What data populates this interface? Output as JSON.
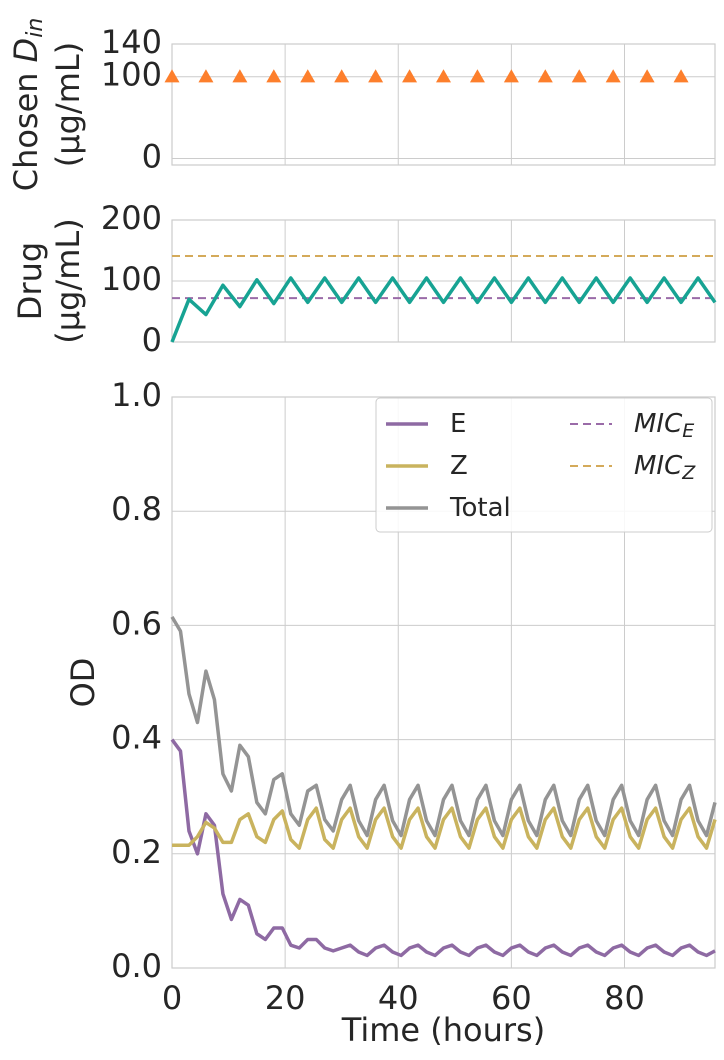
{
  "chart_data": [
    {
      "type": "scatter",
      "ylabel": {
        "line1": "Chosen",
        "symbol": "D",
        "sub": "in",
        "line2": "(μg/mL)"
      },
      "x": [
        0,
        6,
        12,
        18,
        24,
        30,
        36,
        42,
        48,
        54,
        60,
        66,
        72,
        78,
        84,
        90
      ],
      "values": [
        100,
        100,
        100,
        100,
        100,
        100,
        100,
        100,
        100,
        100,
        100,
        100,
        100,
        100,
        100,
        100
      ],
      "color": "#fd7f2c",
      "marker": "triangle",
      "xlim": [
        0,
        96
      ],
      "xticks": [
        0,
        20,
        40,
        60,
        80
      ],
      "show_xtick_labels": false,
      "ylim": [
        -8,
        140
      ],
      "yticks": [
        0,
        100,
        140
      ],
      "grid": true
    },
    {
      "type": "line",
      "ylabel": {
        "line1": "Drug",
        "line2": "(μg/mL)"
      },
      "x": [
        0,
        3,
        6,
        9,
        12,
        15,
        18,
        21,
        24,
        27,
        30,
        33,
        36,
        39,
        42,
        45,
        48,
        51,
        54,
        57,
        60,
        63,
        66,
        69,
        72,
        75,
        78,
        81,
        84,
        87,
        90,
        93,
        96
      ],
      "series": [
        {
          "color": "#17a393",
          "values": [
            0,
            70,
            45,
            93,
            58,
            102,
            63,
            105,
            65,
            105,
            65,
            105,
            65,
            105,
            65,
            105,
            65,
            105,
            65,
            105,
            65,
            105,
            65,
            105,
            65,
            105,
            65,
            105,
            65,
            105,
            65,
            105,
            65
          ]
        }
      ],
      "hlines": [
        {
          "name": "MIC",
          "sub": "E",
          "value": 72,
          "color": "#9a6ba8"
        },
        {
          "name": "MIC",
          "sub": "Z",
          "value": 141,
          "color": "#d4aa5a"
        }
      ],
      "xlim": [
        0,
        96
      ],
      "xticks": [
        0,
        20,
        40,
        60,
        80
      ],
      "show_xtick_labels": false,
      "ylim": [
        0,
        200
      ],
      "yticks": [
        0,
        100,
        200
      ],
      "grid": true
    },
    {
      "type": "line",
      "xlabel": "Time (hours)",
      "ylabel": "OD",
      "x": [
        0,
        1.5,
        3,
        4.5,
        6,
        7.5,
        9,
        10.5,
        12,
        13.5,
        15,
        16.5,
        18,
        19.5,
        21,
        22.5,
        24,
        25.5,
        27,
        28.5,
        30,
        31.5,
        33,
        34.5,
        36,
        37.5,
        39,
        40.5,
        42,
        43.5,
        45,
        46.5,
        48,
        49.5,
        51,
        52.5,
        54,
        55.5,
        57,
        58.5,
        60,
        61.5,
        63,
        64.5,
        66,
        67.5,
        69,
        70.5,
        72,
        73.5,
        75,
        76.5,
        78,
        79.5,
        81,
        82.5,
        84,
        85.5,
        87,
        88.5,
        90,
        91.5,
        93,
        94.5,
        96
      ],
      "series": [
        {
          "name": "E",
          "color": "#8e6aa3",
          "values": [
            0.4,
            0.38,
            0.24,
            0.2,
            0.27,
            0.25,
            0.13,
            0.085,
            0.12,
            0.11,
            0.06,
            0.05,
            0.07,
            0.07,
            0.04,
            0.035,
            0.05,
            0.05,
            0.035,
            0.03,
            0.035,
            0.04,
            0.028,
            0.022,
            0.035,
            0.04,
            0.028,
            0.022,
            0.035,
            0.04,
            0.028,
            0.022,
            0.035,
            0.04,
            0.028,
            0.022,
            0.035,
            0.04,
            0.028,
            0.022,
            0.035,
            0.04,
            0.028,
            0.022,
            0.035,
            0.04,
            0.028,
            0.022,
            0.035,
            0.04,
            0.028,
            0.022,
            0.035,
            0.04,
            0.028,
            0.022,
            0.035,
            0.04,
            0.028,
            0.022,
            0.035,
            0.04,
            0.028,
            0.022,
            0.03
          ]
        },
        {
          "name": "Z",
          "color": "#c9b35e",
          "values": [
            0.215,
            0.215,
            0.215,
            0.23,
            0.255,
            0.245,
            0.22,
            0.22,
            0.26,
            0.27,
            0.23,
            0.22,
            0.26,
            0.275,
            0.225,
            0.21,
            0.26,
            0.28,
            0.225,
            0.21,
            0.26,
            0.28,
            0.23,
            0.21,
            0.26,
            0.28,
            0.23,
            0.21,
            0.26,
            0.28,
            0.23,
            0.21,
            0.26,
            0.28,
            0.23,
            0.21,
            0.26,
            0.28,
            0.23,
            0.21,
            0.26,
            0.28,
            0.23,
            0.21,
            0.26,
            0.28,
            0.23,
            0.21,
            0.26,
            0.28,
            0.23,
            0.21,
            0.26,
            0.28,
            0.23,
            0.21,
            0.26,
            0.28,
            0.23,
            0.21,
            0.26,
            0.28,
            0.23,
            0.21,
            0.26
          ]
        },
        {
          "name": "Total",
          "color": "#949494",
          "values": [
            0.615,
            0.59,
            0.48,
            0.43,
            0.52,
            0.47,
            0.34,
            0.31,
            0.39,
            0.37,
            0.29,
            0.27,
            0.33,
            0.34,
            0.27,
            0.25,
            0.31,
            0.32,
            0.26,
            0.24,
            0.295,
            0.32,
            0.258,
            0.232,
            0.295,
            0.32,
            0.258,
            0.232,
            0.295,
            0.32,
            0.258,
            0.232,
            0.295,
            0.32,
            0.258,
            0.232,
            0.295,
            0.32,
            0.258,
            0.232,
            0.295,
            0.32,
            0.258,
            0.232,
            0.295,
            0.32,
            0.258,
            0.232,
            0.295,
            0.32,
            0.258,
            0.232,
            0.295,
            0.32,
            0.258,
            0.232,
            0.295,
            0.32,
            0.258,
            0.232,
            0.295,
            0.32,
            0.258,
            0.232,
            0.29
          ]
        }
      ],
      "legend": {
        "loc": "upper right",
        "ncol": 2
      },
      "xlim": [
        0,
        96
      ],
      "xticks": [
        0,
        20,
        40,
        60,
        80
      ],
      "show_xtick_labels": true,
      "ylim": [
        0,
        1
      ],
      "yticks": [
        {
          "value": 0,
          "label": "0.0"
        },
        0.2,
        0.4,
        0.6,
        0.8,
        {
          "value": 1,
          "label": "1.0"
        }
      ],
      "grid": true
    }
  ]
}
